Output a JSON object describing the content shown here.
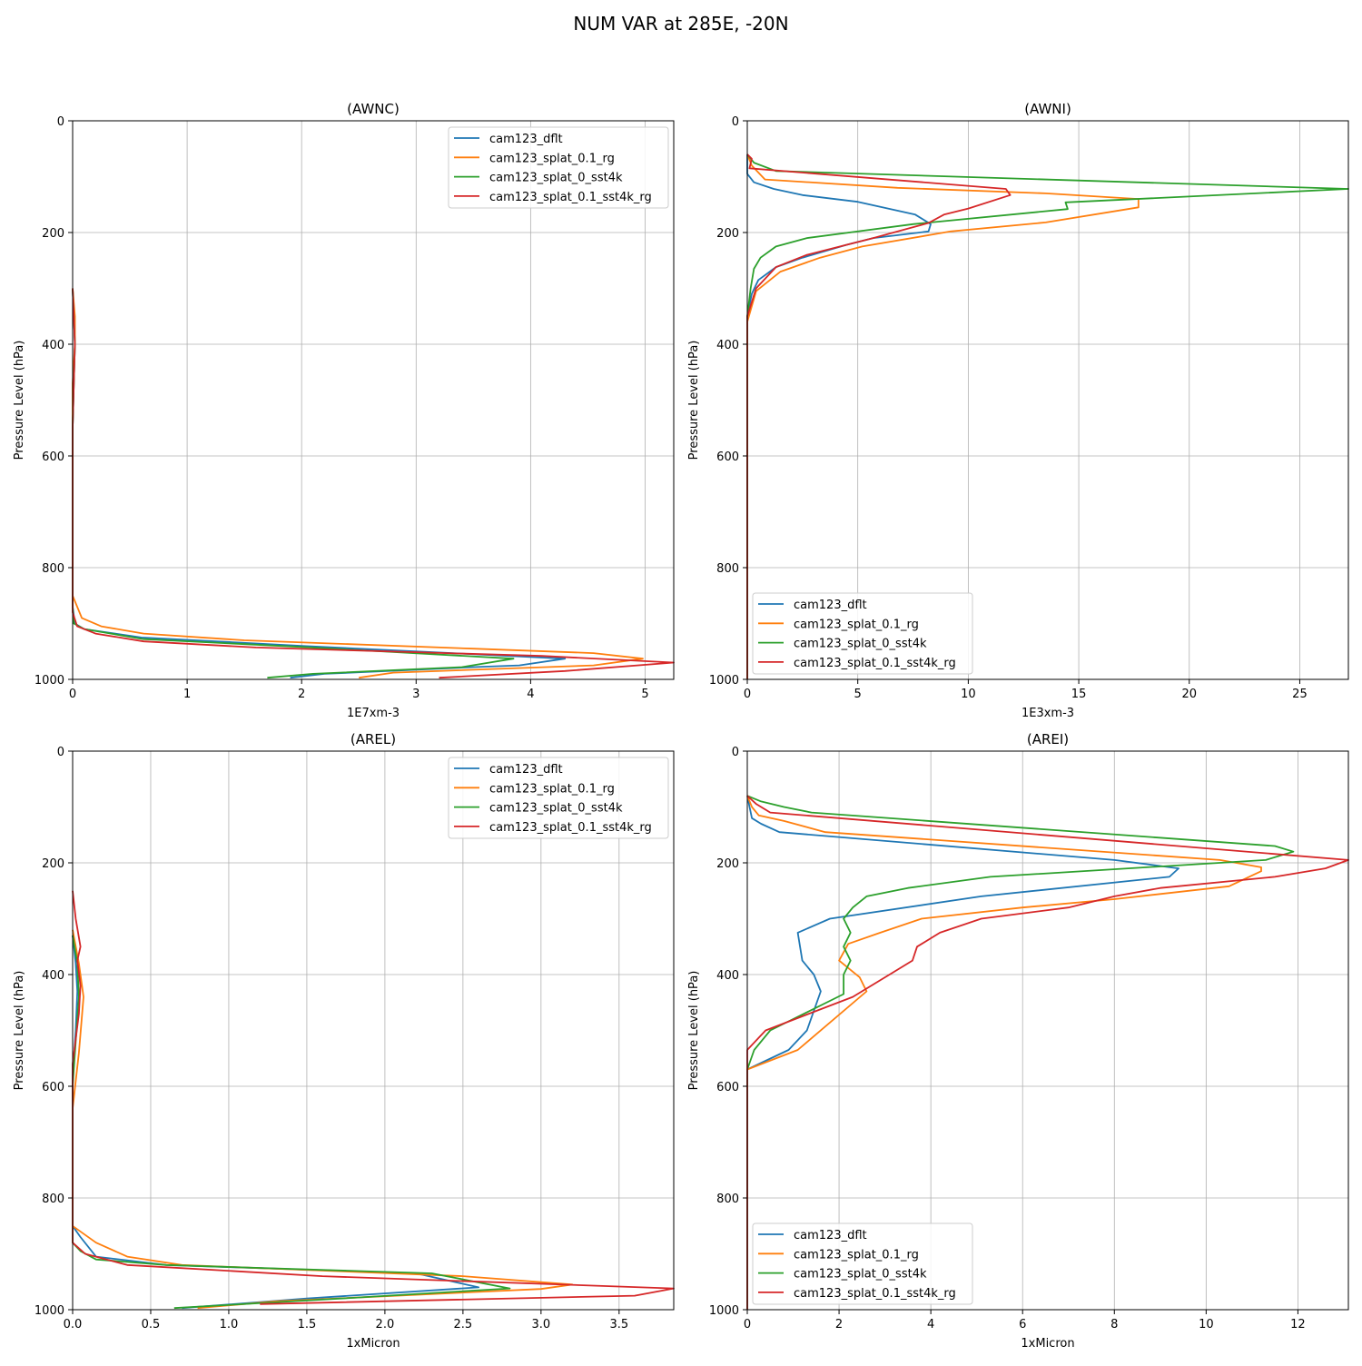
{
  "figure": {
    "title": "NUM VAR at 285E, -20N"
  },
  "legend_names": [
    "cam123_dflt",
    "cam123_splat_0.1_rg",
    "cam123_splat_0_sst4k",
    "cam123_splat_0.1_sst4k_rg"
  ],
  "colors": {
    "dflt": "#1f77b4",
    "splat_0.1_rg": "#ff7f0e",
    "splat_0_sst4k": "#2ca02c",
    "splat_0.1_sst4k_rg": "#d62728"
  },
  "chart_data": [
    {
      "type": "line",
      "title": "(AWNC)",
      "xlabel": "1E7xm-3",
      "ylabel": "Pressure Level (hPa)",
      "xlim": [
        0,
        5.25
      ],
      "ylim": [
        1000,
        0
      ],
      "y_inverted": true,
      "xticks": [
        0,
        1,
        2,
        3,
        4,
        5
      ],
      "yticks": [
        0,
        200,
        400,
        600,
        800,
        1000
      ],
      "grid": true,
      "legend_loc": "upper right",
      "series": [
        {
          "name": "cam123_dflt",
          "color": "#1f77b4",
          "x": [
            0,
            0.01,
            0.02,
            0.01,
            0,
            0,
            0.02,
            0.1,
            0.6,
            2.0,
            4.3,
            3.9,
            3.5,
            2.2,
            1.9
          ],
          "y": [
            300,
            350,
            400,
            470,
            550,
            870,
            900,
            910,
            925,
            940,
            963,
            975,
            978,
            990,
            997
          ]
        },
        {
          "name": "cam123_splat_0.1_rg",
          "color": "#ff7f0e",
          "x": [
            0,
            0.02,
            0.02,
            0,
            0,
            0.08,
            0.25,
            0.62,
            1.5,
            3.5,
            4.55,
            4.98,
            4.55,
            2.8,
            2.5
          ],
          "y": [
            300,
            350,
            400,
            470,
            850,
            890,
            905,
            918,
            930,
            945,
            953,
            963,
            975,
            988,
            997
          ]
        },
        {
          "name": "cam123_splat_0_sst4k",
          "color": "#2ca02c",
          "x": [
            0,
            0.01,
            0.02,
            0.01,
            0,
            0,
            0.01,
            0.1,
            0.62,
            2.0,
            3.85,
            3.4,
            2.1,
            1.7
          ],
          "y": [
            300,
            350,
            400,
            470,
            550,
            870,
            900,
            910,
            928,
            942,
            963,
            978,
            990,
            997
          ]
        },
        {
          "name": "cam123_splat_0.1_sst4k_rg",
          "color": "#d62728",
          "x": [
            0,
            0.01,
            0.02,
            0.01,
            0,
            0,
            0.04,
            0.2,
            0.62,
            1.6,
            4.1,
            5.25,
            4.3,
            3.2
          ],
          "y": [
            300,
            350,
            400,
            470,
            550,
            880,
            905,
            918,
            932,
            943,
            958,
            970,
            985,
            997
          ]
        }
      ]
    },
    {
      "type": "line",
      "title": "(AWNI)",
      "xlabel": "1E3xm-3",
      "ylabel": "Pressure Level (hPa)",
      "xlim": [
        0,
        27.2
      ],
      "ylim": [
        1000,
        0
      ],
      "y_inverted": true,
      "xticks": [
        0,
        5,
        10,
        15,
        20,
        25
      ],
      "yticks": [
        0,
        200,
        400,
        600,
        800,
        1000
      ],
      "grid": true,
      "legend_loc": "lower left",
      "series": [
        {
          "name": "cam123_dflt",
          "color": "#1f77b4",
          "x": [
            0,
            0,
            0.3,
            1.2,
            2.5,
            5.0,
            7.6,
            8.3,
            8.2,
            5.7,
            4.5,
            2.5,
            1.3,
            0.5,
            0.2,
            0,
            0
          ],
          "y": [
            60,
            95,
            110,
            122,
            133,
            145,
            168,
            185,
            198,
            210,
            222,
            245,
            262,
            285,
            310,
            350,
            1000
          ]
        },
        {
          "name": "cam123_splat_0.1_rg",
          "color": "#ff7f0e",
          "x": [
            0,
            0.2,
            0.8,
            6.8,
            13.5,
            17.7,
            17.7,
            13.5,
            9.2,
            5.2,
            3.3,
            1.5,
            0.4,
            0,
            0
          ],
          "y": [
            60,
            80,
            105,
            120,
            130,
            140,
            155,
            182,
            198,
            225,
            245,
            270,
            305,
            360,
            1000
          ]
        },
        {
          "name": "cam123_splat_0_sst4k",
          "color": "#2ca02c",
          "x": [
            0,
            0.3,
            1.3,
            27.2,
            14.4,
            14.5,
            7.5,
            2.7,
            1.3,
            0.6,
            0.3,
            0.15,
            0,
            0
          ],
          "y": [
            60,
            75,
            90,
            122,
            146,
            158,
            185,
            210,
            225,
            245,
            265,
            300,
            350,
            1000
          ]
        },
        {
          "name": "cam123_splat_0.1_sst4k_rg",
          "color": "#d62728",
          "x": [
            0,
            0.2,
            0.1,
            11.7,
            11.9,
            10.0,
            8.9,
            8.2,
            5.7,
            2.7,
            1.3,
            0.4,
            0,
            0
          ],
          "y": [
            60,
            68,
            85,
            122,
            133,
            157,
            168,
            183,
            210,
            240,
            262,
            300,
            350,
            1000
          ]
        }
      ]
    },
    {
      "type": "line",
      "title": "(AREL)",
      "xlabel": "1xMicron",
      "ylabel": "Pressure Level (hPa)",
      "xlim": [
        0,
        3.85
      ],
      "ylim": [
        1000,
        0
      ],
      "y_inverted": true,
      "xticks": [
        0.0,
        0.5,
        1.0,
        1.5,
        2.0,
        2.5,
        3.0,
        3.5
      ],
      "yticks": [
        0,
        200,
        400,
        600,
        800,
        1000
      ],
      "grid": true,
      "legend_loc": "upper right",
      "series": [
        {
          "name": "cam123_dflt",
          "color": "#1f77b4",
          "x": [
            0,
            0.02,
            0.03,
            0.02,
            0,
            0,
            0.05,
            0.15,
            0.6,
            2.2,
            2.6,
            1.5,
            0.7
          ],
          "y": [
            330,
            380,
            430,
            500,
            580,
            850,
            870,
            905,
            920,
            935,
            960,
            980,
            997
          ]
        },
        {
          "name": "cam123_splat_0.1_rg",
          "color": "#ff7f0e",
          "x": [
            0,
            0.04,
            0.07,
            0.04,
            0,
            0,
            0.15,
            0.35,
            0.7,
            2.5,
            3.2,
            3.0,
            1.3,
            0.8
          ],
          "y": [
            320,
            380,
            440,
            540,
            640,
            850,
            880,
            905,
            920,
            940,
            955,
            963,
            985,
            997
          ]
        },
        {
          "name": "cam123_splat_0_sst4k",
          "color": "#2ca02c",
          "x": [
            0,
            0.03,
            0.04,
            0.02,
            0,
            0,
            0.05,
            0.15,
            0.6,
            2.3,
            2.8,
            1.6,
            0.65
          ],
          "y": [
            330,
            380,
            440,
            520,
            600,
            880,
            895,
            910,
            920,
            935,
            962,
            982,
            997
          ]
        },
        {
          "name": "cam123_splat_0.1_sst4k_rg",
          "color": "#d62728",
          "x": [
            0,
            0.02,
            0.05,
            0.03,
            0.05,
            0.04,
            0,
            0,
            0.08,
            0.35,
            1.6,
            3.85,
            3.6,
            1.2
          ],
          "y": [
            250,
            300,
            350,
            375,
            420,
            470,
            560,
            880,
            900,
            920,
            940,
            962,
            975,
            990
          ]
        }
      ]
    },
    {
      "type": "line",
      "title": "(AREI)",
      "xlabel": "1xMicron",
      "ylabel": "Pressure Level (hPa)",
      "xlim": [
        0,
        13.1
      ],
      "ylim": [
        1000,
        0
      ],
      "y_inverted": true,
      "xticks": [
        0,
        2,
        4,
        6,
        8,
        10,
        12
      ],
      "yticks": [
        0,
        200,
        400,
        600,
        800,
        1000
      ],
      "grid": true,
      "legend_loc": "lower left",
      "series": [
        {
          "name": "cam123_dflt",
          "color": "#1f77b4",
          "x": [
            0,
            0.05,
            0.1,
            0.3,
            0.7,
            8.0,
            9.4,
            9.2,
            5.1,
            1.8,
            1.1,
            1.15,
            1.2,
            1.45,
            1.6,
            1.3,
            0.9,
            0,
            0
          ],
          "y": [
            80,
            100,
            120,
            130,
            145,
            195,
            210,
            225,
            260,
            300,
            325,
            350,
            375,
            400,
            430,
            500,
            535,
            570,
            1000
          ]
        },
        {
          "name": "cam123_splat_0.1_rg",
          "color": "#ff7f0e",
          "x": [
            0,
            0.1,
            0.25,
            0.8,
            1.7,
            10.3,
            11.2,
            11.2,
            10.5,
            8.0,
            6.0,
            3.8,
            2.9,
            2.2,
            2.0,
            2.45,
            2.6,
            1.1,
            0
          ],
          "y": [
            80,
            100,
            115,
            125,
            145,
            195,
            208,
            215,
            242,
            265,
            280,
            300,
            325,
            345,
            375,
            405,
            430,
            535,
            570
          ]
        },
        {
          "name": "cam123_splat_0_sst4k",
          "color": "#2ca02c",
          "x": [
            0,
            0.3,
            0.8,
            1.4,
            11.5,
            11.9,
            11.3,
            5.3,
            3.5,
            2.6,
            2.3,
            2.1,
            2.25,
            2.1,
            2.25,
            2.1,
            2.1,
            0.5,
            0.15,
            0,
            0
          ],
          "y": [
            80,
            90,
            100,
            110,
            170,
            180,
            195,
            225,
            245,
            260,
            280,
            300,
            325,
            350,
            375,
            400,
            435,
            500,
            535,
            570,
            1000
          ]
        },
        {
          "name": "cam123_splat_0.1_sst4k_rg",
          "color": "#d62728",
          "x": [
            0,
            0.2,
            0.5,
            13.1,
            12.6,
            11.5,
            9.0,
            8.0,
            7.0,
            5.1,
            4.2,
            3.7,
            3.6,
            3.1,
            2.3,
            0.4,
            0,
            0
          ],
          "y": [
            80,
            95,
            110,
            195,
            210,
            225,
            245,
            260,
            280,
            300,
            325,
            350,
            375,
            400,
            440,
            500,
            535,
            1000
          ]
        }
      ]
    }
  ]
}
